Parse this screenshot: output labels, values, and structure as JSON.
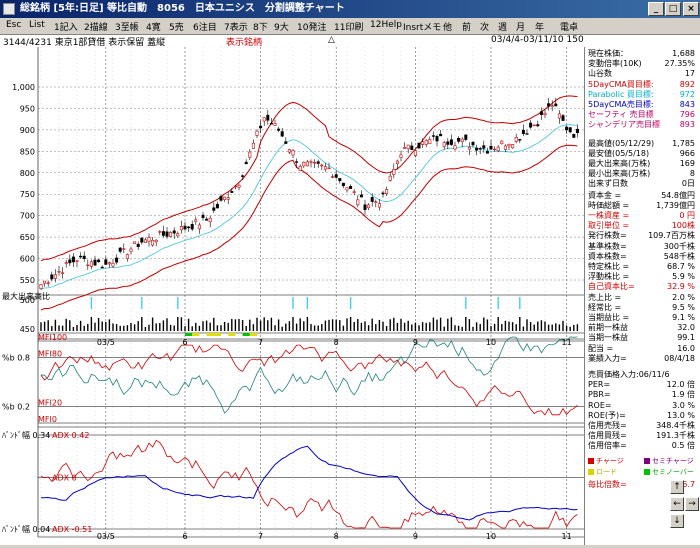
{
  "title": "総銘柄 [5年:日足] 等比自動　8056　日本ユニシス　分割調整チャート",
  "window_buttons": {
    "min": "_",
    "max": "□",
    "close": "×"
  },
  "menu": [
    "Esc",
    "List",
    "1記入",
    "2描線",
    "3至帳",
    "4寛",
    "5売",
    "6注目",
    "7表示",
    "8下",
    "9大",
    "10発注",
    "11印刷",
    "12Help",
    "Insrtメモ",
    "他",
    "前",
    "次",
    "週",
    "月",
    "年",
    "電卓"
  ],
  "info": {
    "code": "3144/4231 東京1部貸借 表示保留 蓋縦",
    "label": "表示銘柄",
    "marker": "△",
    "range": "03/4/4-03/11/10 150"
  },
  "axes": {
    "price_ticks": [
      "1,000",
      "950",
      "900",
      "850",
      "800",
      "750",
      "700",
      "650",
      "600",
      "550"
    ],
    "volume_label": "最大出来高比",
    "volume_ticks": [
      "500",
      "450"
    ],
    "date_ticks": [
      "03/5",
      "6",
      "7",
      "8",
      "9",
      "10",
      "11"
    ]
  },
  "mfi": {
    "labels": [
      "MFI100",
      "MFI80",
      "MFI20",
      "MFI0"
    ],
    "left_labels": [
      "%b 0.8",
      "%b 0.2"
    ]
  },
  "adx": {
    "labels": [
      "ADX 0.42",
      "ADX 0",
      "ADX -0.51"
    ],
    "left_labels": [
      "ﾊﾞﾝﾄﾞ幅 0.34",
      "ﾊﾞﾝﾄﾞ幅 0.04"
    ]
  },
  "panel": {
    "rows1": [
      {
        "l": "現在株価：",
        "v": "1,688",
        "c": ""
      },
      {
        "l": "変動倍率(10K)",
        "v": "27.35%",
        "c": ""
      },
      {
        "l": "山谷数",
        "v": "17",
        "c": ""
      },
      {
        "l": "5DayCMA買目標:",
        "v": "892",
        "c": "red"
      },
      {
        "l": "Parabolic 買目標:",
        "v": "972",
        "c": "cyan"
      },
      {
        "l": "5DayCMA売目標:",
        "v": "843",
        "c": "blue"
      },
      {
        "l": "セーフティ 売目標",
        "v": "796",
        "c": "mag"
      },
      {
        "l": "シャンデリア売目標",
        "v": "893",
        "c": "mag"
      }
    ],
    "rows2": [
      {
        "l": "最高値(05/12/29)",
        "v": "1,785",
        "c": ""
      },
      {
        "l": "最安値(05/5/18)",
        "v": "966",
        "c": ""
      },
      {
        "l": "最大出来高(万株)",
        "v": "169",
        "c": ""
      },
      {
        "l": "最小出来高(万株)",
        "v": "8",
        "c": ""
      },
      {
        "l": "出来ず日数",
        "v": "0日",
        "c": ""
      }
    ],
    "rows3": [
      {
        "l": "資本金 =",
        "v": "54.8億円",
        "c": ""
      },
      {
        "l": "時価総額 =",
        "v": "1,739億円",
        "c": ""
      },
      {
        "l": "一株資産 =",
        "v": "0 円",
        "c": "red"
      },
      {
        "l": "取引単位 =",
        "v": "100株",
        "c": "red"
      },
      {
        "l": "発行株数=",
        "v": "109.7百万株",
        "c": ""
      },
      {
        "l": "基準株数=",
        "v": "300千株",
        "c": ""
      },
      {
        "l": "資本株数=",
        "v": "548千株",
        "c": ""
      },
      {
        "l": "特定株比 =",
        "v": "68.7 %",
        "c": ""
      },
      {
        "l": "浮動株比 =",
        "v": "5.9 %",
        "c": ""
      },
      {
        "l": "自己資本比=",
        "v": "32.9 %",
        "c": "red"
      },
      {
        "l": "売上比 =",
        "v": "2.0 %",
        "c": ""
      },
      {
        "l": "経常比 =",
        "v": "9.5 %",
        "c": ""
      },
      {
        "l": "当期益比 =",
        "v": "9.1 %",
        "c": ""
      },
      {
        "l": "前期一株益",
        "v": "32.0",
        "c": ""
      },
      {
        "l": "当期一株益",
        "v": "99.1",
        "c": ""
      },
      {
        "l": "配当 =",
        "v": "16.0",
        "c": ""
      },
      {
        "l": "業績入力=",
        "v": "08/4/18",
        "c": ""
      }
    ],
    "rows4": [
      {
        "l": "売買価格入力:06/11/6",
        "v": "",
        "c": ""
      },
      {
        "l": "PER=",
        "v": "12.0 倍",
        "c": ""
      },
      {
        "l": "PBR=",
        "v": "1.9 倍",
        "c": ""
      },
      {
        "l": "ROE=",
        "v": "3.0 %",
        "c": ""
      },
      {
        "l": "ROE(予)=",
        "v": "13.0 %",
        "c": ""
      },
      {
        "l": "信用売残=",
        "v": "348.4千株",
        "c": ""
      },
      {
        "l": "信用買残=",
        "v": "191.3千株",
        "c": ""
      },
      {
        "l": "信用倍率=",
        "v": "0.5 倍",
        "c": ""
      }
    ],
    "legend": [
      {
        "l": "チャージ",
        "c": "#d00000",
        "tc": "red"
      },
      {
        "l": "セミチャージ",
        "c": "#800080",
        "tc": "pur"
      },
      {
        "l": "ロード",
        "c": "#e0d000",
        "tc": "yel"
      },
      {
        "l": "セミノーバー",
        "c": "#00c000",
        "tc": "grn"
      }
    ],
    "ratio": {
      "l": "毎比倍数=",
      "v": "26.7"
    },
    "nav": {
      "up": "↑",
      "left": "←",
      "right": "→",
      "down": "↓"
    }
  }
}
